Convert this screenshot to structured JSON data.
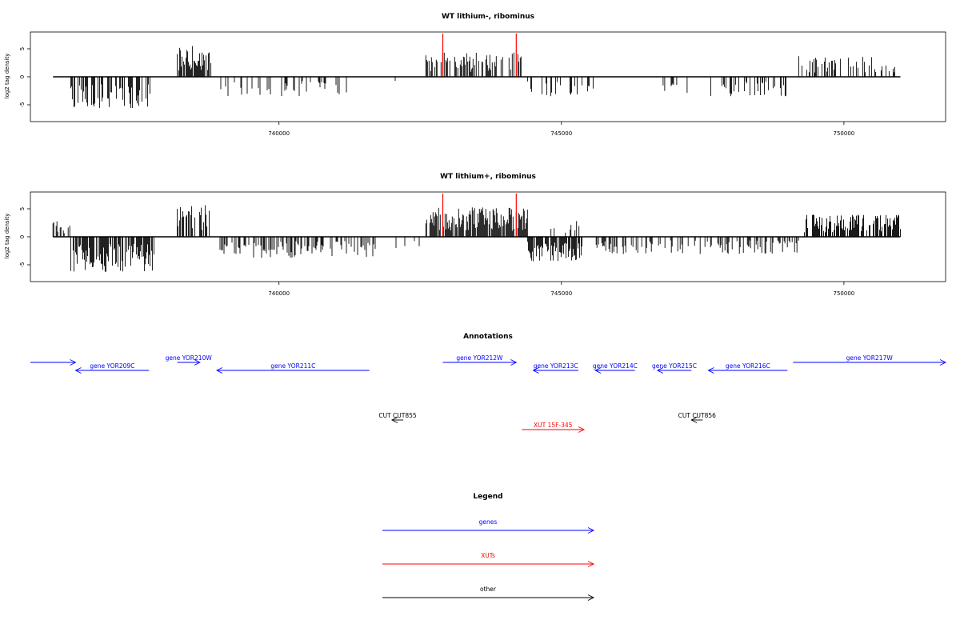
{
  "chart_data": [
    {
      "type": "bar",
      "title": "WT lithium-, ribominus",
      "ylabel": "log2 tag density",
      "xlabel": "",
      "xlim": [
        735600,
        751800
      ],
      "ylim": [
        -8,
        8
      ],
      "yticks": [
        -5,
        0,
        5
      ],
      "xticks": [
        740000,
        745000,
        750000
      ],
      "grid": false,
      "markers": [
        742900,
        744200
      ],
      "marker_color": "#ff0000",
      "bar_color": "#000000",
      "segments": [
        {
          "from": 736000,
          "to": 736200,
          "sign": 1,
          "level": 2.5,
          "density": 0.03
        },
        {
          "from": 736300,
          "to": 737800,
          "sign": -1,
          "level": 4.5,
          "density": 0.5
        },
        {
          "from": 738200,
          "to": 738800,
          "sign": 1,
          "level": 4.5,
          "density": 0.8
        },
        {
          "from": 738900,
          "to": 741200,
          "sign": -1,
          "level": 2.8,
          "density": 0.18
        },
        {
          "from": 742000,
          "to": 742100,
          "sign": -1,
          "level": 1.2,
          "density": 0.03
        },
        {
          "from": 742600,
          "to": 744300,
          "sign": 1,
          "level": 3.5,
          "density": 0.55
        },
        {
          "from": 744300,
          "to": 745600,
          "sign": -1,
          "level": 2.8,
          "density": 0.3
        },
        {
          "from": 746700,
          "to": 747300,
          "sign": -1,
          "level": 2.3,
          "density": 0.2
        },
        {
          "from": 747600,
          "to": 749000,
          "sign": -1,
          "level": 2.8,
          "density": 0.25
        },
        {
          "from": 749200,
          "to": 751000,
          "sign": 1,
          "level": 3,
          "density": 0.3
        }
      ]
    },
    {
      "type": "bar",
      "title": "WT lithium+, ribominus",
      "ylabel": "log2 tag density",
      "xlabel": "",
      "xlim": [
        735600,
        751800
      ],
      "ylim": [
        -8,
        8
      ],
      "yticks": [
        -5,
        0,
        5
      ],
      "xticks": [
        740000,
        745000,
        750000
      ],
      "grid": false,
      "markers": [
        742900,
        744200
      ],
      "marker_color": "#ff0000",
      "bar_color": "#000000",
      "segments": [
        {
          "from": 736000,
          "to": 736300,
          "sign": 1,
          "level": 2.5,
          "density": 0.4
        },
        {
          "from": 736300,
          "to": 737800,
          "sign": -1,
          "level": 5,
          "density": 0.75
        },
        {
          "from": 738200,
          "to": 738800,
          "sign": 1,
          "level": 4.5,
          "density": 0.7
        },
        {
          "from": 738900,
          "to": 741800,
          "sign": -1,
          "level": 3,
          "density": 0.45
        },
        {
          "from": 742000,
          "to": 742600,
          "sign": -1,
          "level": 2,
          "density": 0.1
        },
        {
          "from": 742600,
          "to": 744400,
          "sign": 1,
          "level": 4.2,
          "density": 0.85
        },
        {
          "from": 744400,
          "to": 745400,
          "sign": -1,
          "level": 3.5,
          "density": 0.7
        },
        {
          "from": 744800,
          "to": 745400,
          "sign": 1,
          "level": 2.5,
          "density": 0.3
        },
        {
          "from": 745600,
          "to": 749200,
          "sign": -1,
          "level": 2.5,
          "density": 0.35
        },
        {
          "from": 749300,
          "to": 751000,
          "sign": 1,
          "level": 3.2,
          "density": 0.7
        }
      ]
    }
  ],
  "annotations": {
    "title": "Annotations",
    "features": [
      {
        "label": "",
        "start": 735600,
        "end": 736400,
        "strand": "+",
        "row": 0,
        "color": "#0000ff"
      },
      {
        "label": "gene YOR209C",
        "start": 736400,
        "end": 737700,
        "strand": "-",
        "row": 1,
        "color": "#0000ff"
      },
      {
        "label": "gene YOR210W",
        "start": 738200,
        "end": 738600,
        "strand": "+",
        "row": 0,
        "color": "#0000ff"
      },
      {
        "label": "gene YOR211C",
        "start": 738900,
        "end": 741600,
        "strand": "-",
        "row": 1,
        "color": "#0000ff"
      },
      {
        "label": "gene YOR212W",
        "start": 742900,
        "end": 744200,
        "strand": "+",
        "row": 0,
        "color": "#0000ff"
      },
      {
        "label": "gene YOR213C",
        "start": 744500,
        "end": 745300,
        "strand": "-",
        "row": 1,
        "color": "#0000ff"
      },
      {
        "label": "gene YOR214C",
        "start": 745600,
        "end": 746300,
        "strand": "-",
        "row": 1,
        "color": "#0000ff"
      },
      {
        "label": "gene YOR215C",
        "start": 746700,
        "end": 747300,
        "strand": "-",
        "row": 1,
        "color": "#0000ff"
      },
      {
        "label": "gene YOR216C",
        "start": 747600,
        "end": 749000,
        "strand": "-",
        "row": 1,
        "color": "#0000ff"
      },
      {
        "label": "gene YOR217W",
        "start": 749100,
        "end": 751800,
        "strand": "+",
        "row": 0,
        "color": "#0000ff"
      },
      {
        "label": "CUT CUT855",
        "start": 742000,
        "end": 742200,
        "strand": "-",
        "row": 2,
        "color": "#000000"
      },
      {
        "label": "XUT 15F-345",
        "start": 744300,
        "end": 745400,
        "strand": "+",
        "row": 3,
        "color": "#ff0000"
      },
      {
        "label": "CUT CUT856",
        "start": 747300,
        "end": 747500,
        "strand": "-",
        "row": 2,
        "color": "#000000"
      }
    ]
  },
  "legend": {
    "title": "Legend",
    "items": [
      {
        "label": "genes",
        "color": "#0000ff"
      },
      {
        "label": "XUTs",
        "color": "#ff0000"
      },
      {
        "label": "other",
        "color": "#000000"
      }
    ]
  }
}
